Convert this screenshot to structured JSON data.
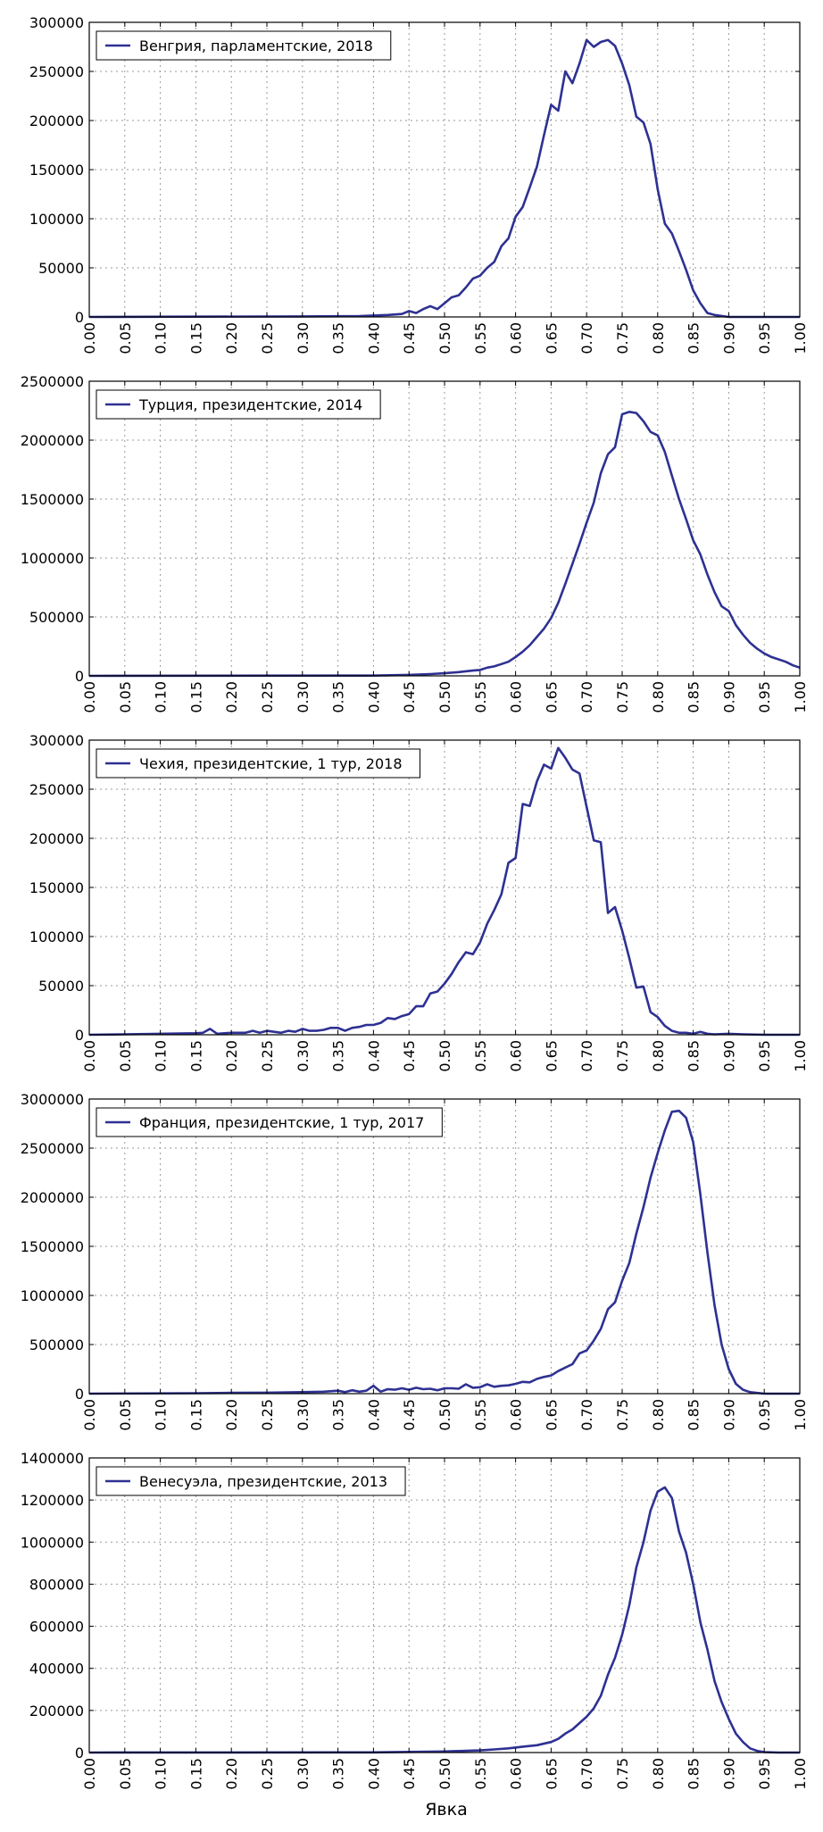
{
  "figure": {
    "xlabel": "Явка"
  },
  "chart_data": [
    {
      "type": "line",
      "series": [
        {
          "name": "Венгрия, парламентские, 2018"
        }
      ],
      "xlim": [
        0,
        1
      ],
      "ylim": [
        0,
        300000
      ],
      "xticks": [
        "0.00",
        "0.05",
        "0.10",
        "0.15",
        "0.20",
        "0.25",
        "0.30",
        "0.35",
        "0.40",
        "0.45",
        "0.50",
        "0.55",
        "0.60",
        "0.65",
        "0.70",
        "0.75",
        "0.80",
        "0.85",
        "0.90",
        "0.95",
        "1.00"
      ],
      "yticks": [
        "0",
        "50000",
        "100000",
        "150000",
        "200000",
        "250000",
        "300000"
      ],
      "grid": true,
      "legend": "top-left",
      "points": [
        [
          0,
          0
        ],
        [
          0.3,
          500
        ],
        [
          0.38,
          800
        ],
        [
          0.42,
          2000
        ],
        [
          0.44,
          3000
        ],
        [
          0.45,
          6000
        ],
        [
          0.46,
          4000
        ],
        [
          0.47,
          8000
        ],
        [
          0.48,
          11000
        ],
        [
          0.49,
          8000
        ],
        [
          0.5,
          14000
        ],
        [
          0.51,
          20000
        ],
        [
          0.52,
          22000
        ],
        [
          0.53,
          30000
        ],
        [
          0.54,
          39000
        ],
        [
          0.55,
          42000
        ],
        [
          0.56,
          50000
        ],
        [
          0.57,
          56000
        ],
        [
          0.58,
          72000
        ],
        [
          0.59,
          80000
        ],
        [
          0.6,
          102000
        ],
        [
          0.61,
          112000
        ],
        [
          0.62,
          132000
        ],
        [
          0.63,
          153000
        ],
        [
          0.64,
          185000
        ],
        [
          0.65,
          216000
        ],
        [
          0.66,
          210000
        ],
        [
          0.67,
          250000
        ],
        [
          0.68,
          238000
        ],
        [
          0.69,
          258000
        ],
        [
          0.7,
          282000
        ],
        [
          0.71,
          275000
        ],
        [
          0.72,
          280000
        ],
        [
          0.73,
          282000
        ],
        [
          0.74,
          276000
        ],
        [
          0.75,
          258000
        ],
        [
          0.76,
          236000
        ],
        [
          0.77,
          204000
        ],
        [
          0.78,
          198000
        ],
        [
          0.79,
          176000
        ],
        [
          0.8,
          130000
        ],
        [
          0.81,
          95000
        ],
        [
          0.82,
          85000
        ],
        [
          0.83,
          67000
        ],
        [
          0.84,
          48000
        ],
        [
          0.85,
          27000
        ],
        [
          0.86,
          14000
        ],
        [
          0.87,
          4000
        ],
        [
          0.88,
          2000
        ],
        [
          0.9,
          0
        ],
        [
          1.0,
          0
        ]
      ]
    },
    {
      "type": "line",
      "series": [
        {
          "name": "Турция, президентские, 2014"
        }
      ],
      "xlim": [
        0,
        1
      ],
      "ylim": [
        0,
        2500000
      ],
      "xticks": [
        "0.00",
        "0.05",
        "0.10",
        "0.15",
        "0.20",
        "0.25",
        "0.30",
        "0.35",
        "0.40",
        "0.45",
        "0.50",
        "0.55",
        "0.60",
        "0.65",
        "0.70",
        "0.75",
        "0.80",
        "0.85",
        "0.90",
        "0.95",
        "1.00"
      ],
      "yticks": [
        "0",
        "500000",
        "1000000",
        "1500000",
        "2000000",
        "2500000"
      ],
      "grid": true,
      "legend": "top-left",
      "points": [
        [
          0,
          0
        ],
        [
          0.4,
          2000
        ],
        [
          0.45,
          8000
        ],
        [
          0.48,
          15000
        ],
        [
          0.5,
          22000
        ],
        [
          0.52,
          32000
        ],
        [
          0.54,
          45000
        ],
        [
          0.55,
          50000
        ],
        [
          0.56,
          70000
        ],
        [
          0.57,
          80000
        ],
        [
          0.58,
          100000
        ],
        [
          0.59,
          120000
        ],
        [
          0.6,
          160000
        ],
        [
          0.61,
          205000
        ],
        [
          0.62,
          260000
        ],
        [
          0.63,
          330000
        ],
        [
          0.64,
          400000
        ],
        [
          0.65,
          490000
        ],
        [
          0.66,
          620000
        ],
        [
          0.67,
          780000
        ],
        [
          0.68,
          950000
        ],
        [
          0.69,
          1120000
        ],
        [
          0.7,
          1300000
        ],
        [
          0.71,
          1470000
        ],
        [
          0.72,
          1720000
        ],
        [
          0.73,
          1880000
        ],
        [
          0.74,
          1940000
        ],
        [
          0.75,
          2220000
        ],
        [
          0.76,
          2240000
        ],
        [
          0.77,
          2230000
        ],
        [
          0.78,
          2160000
        ],
        [
          0.79,
          2070000
        ],
        [
          0.8,
          2040000
        ],
        [
          0.81,
          1900000
        ],
        [
          0.82,
          1700000
        ],
        [
          0.83,
          1500000
        ],
        [
          0.84,
          1330000
        ],
        [
          0.85,
          1150000
        ],
        [
          0.86,
          1030000
        ],
        [
          0.87,
          860000
        ],
        [
          0.88,
          710000
        ],
        [
          0.89,
          590000
        ],
        [
          0.9,
          550000
        ],
        [
          0.91,
          430000
        ],
        [
          0.92,
          350000
        ],
        [
          0.93,
          280000
        ],
        [
          0.94,
          230000
        ],
        [
          0.95,
          190000
        ],
        [
          0.96,
          160000
        ],
        [
          0.97,
          140000
        ],
        [
          0.98,
          120000
        ],
        [
          0.99,
          90000
        ],
        [
          1.0,
          70000
        ]
      ]
    },
    {
      "type": "line",
      "series": [
        {
          "name": "Чехия, президентские, 1 тур, 2018"
        }
      ],
      "xlim": [
        0,
        1
      ],
      "ylim": [
        0,
        300000
      ],
      "xticks": [
        "0.00",
        "0.05",
        "0.10",
        "0.15",
        "0.20",
        "0.25",
        "0.30",
        "0.35",
        "0.40",
        "0.45",
        "0.50",
        "0.55",
        "0.60",
        "0.65",
        "0.70",
        "0.75",
        "0.80",
        "0.85",
        "0.90",
        "0.95",
        "1.00"
      ],
      "yticks": [
        "0",
        "50000",
        "100000",
        "150000",
        "200000",
        "250000",
        "300000"
      ],
      "grid": true,
      "legend": "top-left",
      "points": [
        [
          0,
          0
        ],
        [
          0.05,
          500
        ],
        [
          0.1,
          1000
        ],
        [
          0.15,
          1500
        ],
        [
          0.16,
          2000
        ],
        [
          0.17,
          6000
        ],
        [
          0.18,
          1000
        ],
        [
          0.2,
          2000
        ],
        [
          0.22,
          2000
        ],
        [
          0.23,
          4000
        ],
        [
          0.24,
          2000
        ],
        [
          0.25,
          4000
        ],
        [
          0.26,
          3000
        ],
        [
          0.27,
          2000
        ],
        [
          0.28,
          4000
        ],
        [
          0.29,
          3000
        ],
        [
          0.3,
          6000
        ],
        [
          0.31,
          4000
        ],
        [
          0.32,
          4000
        ],
        [
          0.33,
          5000
        ],
        [
          0.34,
          7000
        ],
        [
          0.35,
          7000
        ],
        [
          0.36,
          4000
        ],
        [
          0.37,
          7000
        ],
        [
          0.38,
          8000
        ],
        [
          0.39,
          10000
        ],
        [
          0.4,
          10000
        ],
        [
          0.41,
          12000
        ],
        [
          0.42,
          17000
        ],
        [
          0.43,
          16000
        ],
        [
          0.44,
          19000
        ],
        [
          0.45,
          21000
        ],
        [
          0.46,
          29000
        ],
        [
          0.47,
          29000
        ],
        [
          0.48,
          42000
        ],
        [
          0.49,
          44000
        ],
        [
          0.5,
          52000
        ],
        [
          0.51,
          62000
        ],
        [
          0.52,
          74000
        ],
        [
          0.53,
          84000
        ],
        [
          0.54,
          82000
        ],
        [
          0.55,
          94000
        ],
        [
          0.56,
          113000
        ],
        [
          0.57,
          127000
        ],
        [
          0.58,
          143000
        ],
        [
          0.59,
          175000
        ],
        [
          0.6,
          180000
        ],
        [
          0.61,
          235000
        ],
        [
          0.62,
          233000
        ],
        [
          0.63,
          258000
        ],
        [
          0.64,
          275000
        ],
        [
          0.65,
          271000
        ],
        [
          0.66,
          292000
        ],
        [
          0.67,
          282000
        ],
        [
          0.68,
          270000
        ],
        [
          0.69,
          266000
        ],
        [
          0.7,
          232000
        ],
        [
          0.71,
          198000
        ],
        [
          0.72,
          196000
        ],
        [
          0.73,
          124000
        ],
        [
          0.74,
          130000
        ],
        [
          0.75,
          106000
        ],
        [
          0.76,
          78000
        ],
        [
          0.77,
          48000
        ],
        [
          0.78,
          49000
        ],
        [
          0.79,
          23000
        ],
        [
          0.8,
          18000
        ],
        [
          0.81,
          9000
        ],
        [
          0.82,
          4000
        ],
        [
          0.83,
          2000
        ],
        [
          0.84,
          2000
        ],
        [
          0.85,
          1000
        ],
        [
          0.86,
          3000
        ],
        [
          0.87,
          1000
        ],
        [
          0.88,
          500
        ],
        [
          0.9,
          1000
        ],
        [
          0.92,
          500
        ],
        [
          0.95,
          0
        ],
        [
          1.0,
          0
        ]
      ]
    },
    {
      "type": "line",
      "series": [
        {
          "name": "Франция, президентские, 1 тур, 2017"
        }
      ],
      "xlim": [
        0,
        1
      ],
      "ylim": [
        0,
        3000000
      ],
      "xticks": [
        "0.00",
        "0.05",
        "0.10",
        "0.15",
        "0.20",
        "0.25",
        "0.30",
        "0.35",
        "0.40",
        "0.45",
        "0.50",
        "0.55",
        "0.60",
        "0.65",
        "0.70",
        "0.75",
        "0.80",
        "0.85",
        "0.90",
        "0.95",
        "1.00"
      ],
      "yticks": [
        "0",
        "500000",
        "1000000",
        "1500000",
        "2000000",
        "2500000",
        "3000000"
      ],
      "grid": true,
      "legend": "top-left",
      "points": [
        [
          0,
          0
        ],
        [
          0.15,
          5000
        ],
        [
          0.2,
          8000
        ],
        [
          0.25,
          10000
        ],
        [
          0.3,
          15000
        ],
        [
          0.33,
          20000
        ],
        [
          0.35,
          30000
        ],
        [
          0.36,
          15000
        ],
        [
          0.37,
          35000
        ],
        [
          0.38,
          20000
        ],
        [
          0.39,
          30000
        ],
        [
          0.4,
          80000
        ],
        [
          0.41,
          20000
        ],
        [
          0.42,
          45000
        ],
        [
          0.43,
          40000
        ],
        [
          0.44,
          55000
        ],
        [
          0.45,
          40000
        ],
        [
          0.46,
          60000
        ],
        [
          0.47,
          45000
        ],
        [
          0.48,
          50000
        ],
        [
          0.49,
          35000
        ],
        [
          0.5,
          55000
        ],
        [
          0.51,
          55000
        ],
        [
          0.52,
          50000
        ],
        [
          0.53,
          95000
        ],
        [
          0.54,
          60000
        ],
        [
          0.55,
          65000
        ],
        [
          0.56,
          95000
        ],
        [
          0.57,
          70000
        ],
        [
          0.58,
          80000
        ],
        [
          0.59,
          85000
        ],
        [
          0.6,
          100000
        ],
        [
          0.61,
          120000
        ],
        [
          0.62,
          115000
        ],
        [
          0.63,
          150000
        ],
        [
          0.64,
          170000
        ],
        [
          0.65,
          185000
        ],
        [
          0.66,
          230000
        ],
        [
          0.67,
          265000
        ],
        [
          0.68,
          300000
        ],
        [
          0.69,
          410000
        ],
        [
          0.7,
          440000
        ],
        [
          0.71,
          540000
        ],
        [
          0.72,
          660000
        ],
        [
          0.73,
          860000
        ],
        [
          0.74,
          930000
        ],
        [
          0.75,
          1150000
        ],
        [
          0.76,
          1330000
        ],
        [
          0.77,
          1630000
        ],
        [
          0.78,
          1900000
        ],
        [
          0.79,
          2200000
        ],
        [
          0.8,
          2450000
        ],
        [
          0.81,
          2680000
        ],
        [
          0.82,
          2870000
        ],
        [
          0.83,
          2880000
        ],
        [
          0.84,
          2810000
        ],
        [
          0.85,
          2560000
        ],
        [
          0.86,
          2030000
        ],
        [
          0.87,
          1440000
        ],
        [
          0.88,
          900000
        ],
        [
          0.89,
          500000
        ],
        [
          0.9,
          250000
        ],
        [
          0.91,
          100000
        ],
        [
          0.92,
          40000
        ],
        [
          0.93,
          15000
        ],
        [
          0.95,
          0
        ],
        [
          1.0,
          0
        ]
      ]
    },
    {
      "type": "line",
      "series": [
        {
          "name": "Венесуэла, президентские, 2013"
        }
      ],
      "xlim": [
        0,
        1
      ],
      "ylim": [
        0,
        1400000
      ],
      "xticks": [
        "0.00",
        "0.05",
        "0.10",
        "0.15",
        "0.20",
        "0.25",
        "0.30",
        "0.35",
        "0.40",
        "0.45",
        "0.50",
        "0.55",
        "0.60",
        "0.65",
        "0.70",
        "0.75",
        "0.80",
        "0.85",
        "0.90",
        "0.95",
        "1.00"
      ],
      "yticks": [
        "0",
        "200000",
        "400000",
        "600000",
        "800000",
        "1000000",
        "1200000",
        "1400000"
      ],
      "grid": true,
      "legend": "top-left",
      "points": [
        [
          0,
          0
        ],
        [
          0.4,
          1000
        ],
        [
          0.45,
          3000
        ],
        [
          0.5,
          5000
        ],
        [
          0.52,
          7000
        ],
        [
          0.55,
          10000
        ],
        [
          0.57,
          15000
        ],
        [
          0.59,
          20000
        ],
        [
          0.61,
          28000
        ],
        [
          0.63,
          35000
        ],
        [
          0.65,
          50000
        ],
        [
          0.66,
          65000
        ],
        [
          0.67,
          90000
        ],
        [
          0.68,
          110000
        ],
        [
          0.69,
          140000
        ],
        [
          0.7,
          170000
        ],
        [
          0.71,
          210000
        ],
        [
          0.72,
          270000
        ],
        [
          0.73,
          370000
        ],
        [
          0.74,
          450000
        ],
        [
          0.75,
          560000
        ],
        [
          0.76,
          700000
        ],
        [
          0.77,
          880000
        ],
        [
          0.78,
          1000000
        ],
        [
          0.79,
          1150000
        ],
        [
          0.8,
          1240000
        ],
        [
          0.81,
          1260000
        ],
        [
          0.82,
          1210000
        ],
        [
          0.83,
          1050000
        ],
        [
          0.84,
          950000
        ],
        [
          0.85,
          800000
        ],
        [
          0.86,
          620000
        ],
        [
          0.87,
          490000
        ],
        [
          0.88,
          340000
        ],
        [
          0.89,
          240000
        ],
        [
          0.9,
          160000
        ],
        [
          0.91,
          90000
        ],
        [
          0.92,
          50000
        ],
        [
          0.93,
          20000
        ],
        [
          0.94,
          8000
        ],
        [
          0.95,
          2000
        ],
        [
          0.97,
          0
        ],
        [
          1.0,
          0
        ]
      ]
    }
  ]
}
